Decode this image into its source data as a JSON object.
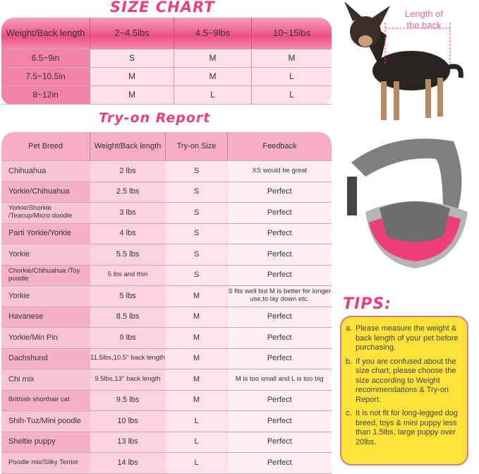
{
  "size_chart": {
    "title": "SIZE CHART",
    "headers": [
      "Weight/Back length",
      "2~4.5lbs",
      "4.5~9lbs",
      "10~15lbs"
    ],
    "rows": [
      [
        "6.5~9in",
        "S",
        "M",
        "M"
      ],
      [
        "7.5~10.5in",
        "M",
        "M",
        "L"
      ],
      [
        "8~12in",
        "M",
        "L",
        "L"
      ]
    ]
  },
  "report": {
    "title": "Try-on Report",
    "headers": [
      "Pet Breed",
      "Weight/Back length",
      "Try-on Size",
      "Feedback"
    ],
    "rows": [
      [
        "Chihuahua",
        "2 lbs",
        "S",
        "XS would be great"
      ],
      [
        "Yorkie/Chihuahua",
        "2.5 lbs",
        "S",
        "Perfect"
      ],
      [
        "Yorkie/Shorkie /Teacup/Micro doodle",
        "3 lbs",
        "S",
        "Perfect"
      ],
      [
        "Parti Yorkie/Yorkie",
        "4 lbs",
        "S",
        "Perfect"
      ],
      [
        "Yorkie",
        "5.5 lbs",
        "S",
        "Perfect"
      ],
      [
        "Chorkie/Chihuahua /Toy poodle",
        "5 lbs and thin",
        "S",
        "Perfect"
      ],
      [
        "Yorkie",
        "5 lbs",
        "M",
        "S fits well but M is better for longer use,to lay down etc."
      ],
      [
        "Havanese",
        "8.5 lbs",
        "M",
        "Perfect"
      ],
      [
        "Yorkie/Min Pin",
        "9 lbs",
        "M",
        "Perfect"
      ],
      [
        "Dachshund",
        "11.5lbs,10.5'' back length",
        "M",
        "Perfect"
      ],
      [
        "Chi mix",
        "9.5lbs,13'' back length",
        "M",
        "M is too small and L is too big"
      ],
      [
        "Brithish shorthair cat",
        "9.5 lbs",
        "M",
        "Perfect"
      ],
      [
        "Shih-Tuz/Mini poodle",
        "10 lbs",
        "L",
        "Perfect"
      ],
      [
        "Sheltie puppy",
        "13 lbs",
        "L",
        "Perfect"
      ],
      [
        "Poodle mix/Silky Terrior",
        "14 lbs",
        "L",
        "Perfect"
      ]
    ]
  },
  "dog_label": "Length of the back",
  "tips": {
    "title": "TIPS:",
    "items": [
      {
        "letter": "a.",
        "text": "Please measure the weight & back length of your pet before purchasing."
      },
      {
        "letter": "b.",
        "text": "If you are confused about the size chart, please choose the size according to Weight recommendations & Try-on Report."
      },
      {
        "letter": "c.",
        "text": "It is not fit for long-legged dog breed, toys & mini puppy less than 1.5lbs, large puppy over 20lbs."
      }
    ]
  },
  "colors": {
    "accent": "#e8407a",
    "tips_bg": "#fde23a"
  }
}
